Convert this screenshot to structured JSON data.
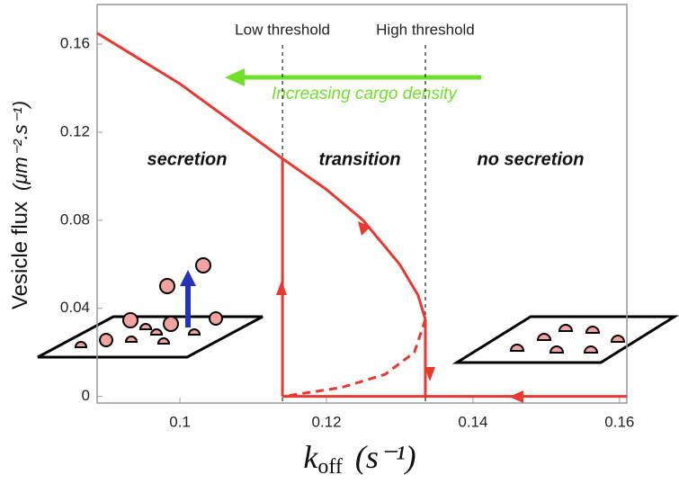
{
  "chart_data": {
    "type": "line",
    "y_label": "Vesicle flux",
    "y_label_unit": "(μm⁻².s⁻¹)",
    "x_label": "k",
    "x_label_sub": "off",
    "x_label_unit": "(s⁻¹)",
    "xlim": [
      0.0887,
      0.161
    ],
    "xticks": [
      0.1,
      0.12,
      0.14,
      0.16
    ],
    "ylim": [
      -0.003,
      0.178
    ],
    "yticks": [
      0,
      0.04,
      0.08,
      0.12,
      0.16
    ],
    "series": [
      {
        "color": "#e8382f",
        "dash": false,
        "x": [
          0.0887,
          0.1,
          0.114,
          0.12,
          0.125,
          0.13,
          0.1325,
          0.1335
        ],
        "values": [
          0.165,
          0.142,
          0.108,
          0.094,
          0.08,
          0.06,
          0.046,
          0.035
        ]
      },
      {
        "color": "#e8382f",
        "dash": true,
        "x": [
          0.1335,
          0.132,
          0.128,
          0.122,
          0.114
        ],
        "values": [
          0.035,
          0.02,
          0.01,
          0.004,
          0
        ]
      },
      {
        "color": "#e8382f",
        "dash": false,
        "x": [
          0.114,
          0.161
        ],
        "values": [
          0,
          0
        ]
      },
      {
        "color": "#e8382f",
        "dash": false,
        "x": [
          0.114,
          0.114
        ],
        "values": [
          0,
          0.108
        ]
      },
      {
        "color": "#e8382f",
        "dash": false,
        "x": [
          0.1335,
          0.1335
        ],
        "values": [
          0.035,
          0
        ]
      }
    ],
    "thresholds": [
      {
        "label": "Low threshold",
        "x": 0.114
      },
      {
        "label": "High threshold",
        "x": 0.1335
      }
    ],
    "annotations": {
      "arrow_text": "Increasing cargo density",
      "regions": [
        "secretion",
        "transition",
        "no secretion"
      ]
    }
  }
}
